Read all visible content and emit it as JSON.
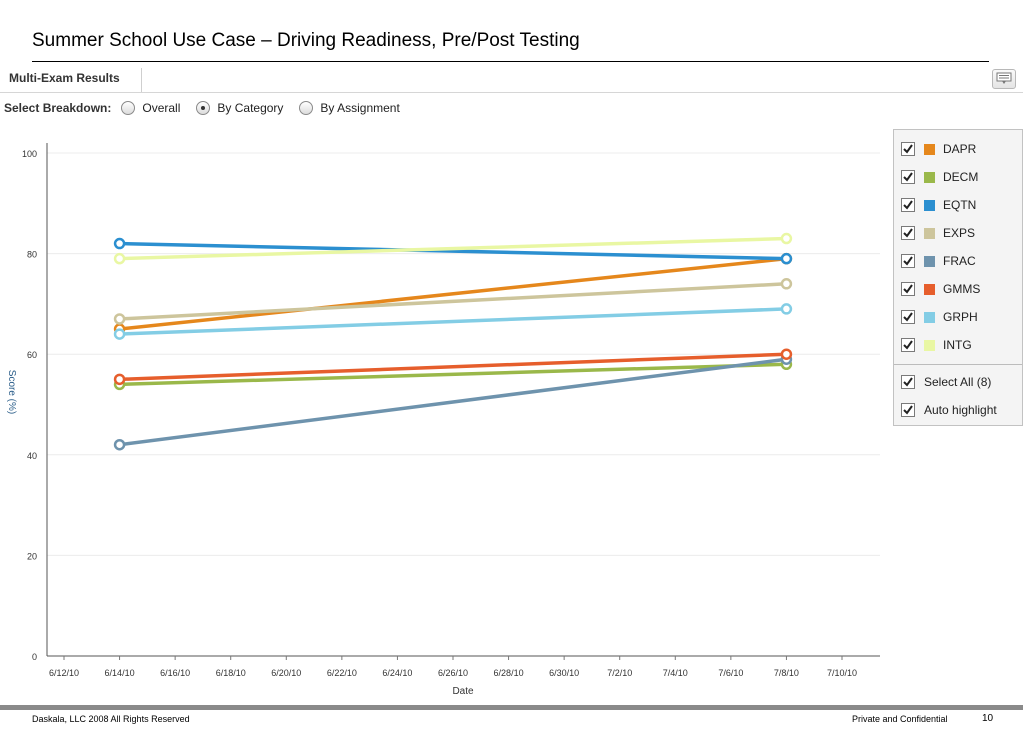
{
  "slide": {
    "title": "Summer School Use Case – Driving Readiness, Pre/Post Testing"
  },
  "panel": {
    "title": "Multi-Exam Results",
    "icon": "export-icon"
  },
  "breakdown": {
    "label": "Select Breakdown:",
    "options": [
      {
        "label": "Overall",
        "selected": false
      },
      {
        "label": "By Category",
        "selected": true
      },
      {
        "label": "By Assignment",
        "selected": false
      }
    ]
  },
  "legend": {
    "items": [
      {
        "label": "DAPR",
        "color": "#e5871c",
        "checked": true
      },
      {
        "label": "DECM",
        "color": "#9ab84a",
        "checked": true
      },
      {
        "label": "EQTN",
        "color": "#2b8fd0",
        "checked": true
      },
      {
        "label": "EXPS",
        "color": "#cdc59c",
        "checked": true
      },
      {
        "label": "FRAC",
        "color": "#6e93ad",
        "checked": true
      },
      {
        "label": "GMMS",
        "color": "#e65e2c",
        "checked": true
      },
      {
        "label": "GRPH",
        "color": "#83cde5",
        "checked": true
      },
      {
        "label": "INTG",
        "color": "#e9f7a3",
        "checked": true
      }
    ],
    "options": [
      {
        "label": "Select All (8)",
        "checked": true
      },
      {
        "label": "Auto highlight",
        "checked": true
      }
    ]
  },
  "chart_data": {
    "type": "line",
    "xlabel": "Date",
    "ylabel": "Score (%)",
    "x_ticks": [
      "6/12/10",
      "6/14/10",
      "6/16/10",
      "6/18/10",
      "6/20/10",
      "6/22/10",
      "6/24/10",
      "6/26/10",
      "6/28/10",
      "6/30/10",
      "7/2/10",
      "7/4/10",
      "7/6/10",
      "7/8/10",
      "7/10/10"
    ],
    "y_ticks": [
      0,
      20,
      40,
      60,
      80,
      100
    ],
    "ylim": [
      0,
      100
    ],
    "x": [
      "6/14/10",
      "7/8/10"
    ],
    "grid": true,
    "legend_position": "right",
    "series": [
      {
        "name": "DAPR",
        "values": [
          65,
          79
        ]
      },
      {
        "name": "DECM",
        "values": [
          54,
          58
        ]
      },
      {
        "name": "EQTN",
        "values": [
          82,
          79
        ]
      },
      {
        "name": "EXPS",
        "values": [
          67,
          74
        ]
      },
      {
        "name": "FRAC",
        "values": [
          42,
          59
        ]
      },
      {
        "name": "GMMS",
        "values": [
          55,
          60
        ]
      },
      {
        "name": "GRPH",
        "values": [
          64,
          69
        ]
      },
      {
        "name": "INTG",
        "values": [
          79,
          83
        ]
      }
    ]
  },
  "footer": {
    "left": "Daskala, LLC 2008 All Rights Reserved",
    "right": "Private and Confidential",
    "page": "10"
  }
}
